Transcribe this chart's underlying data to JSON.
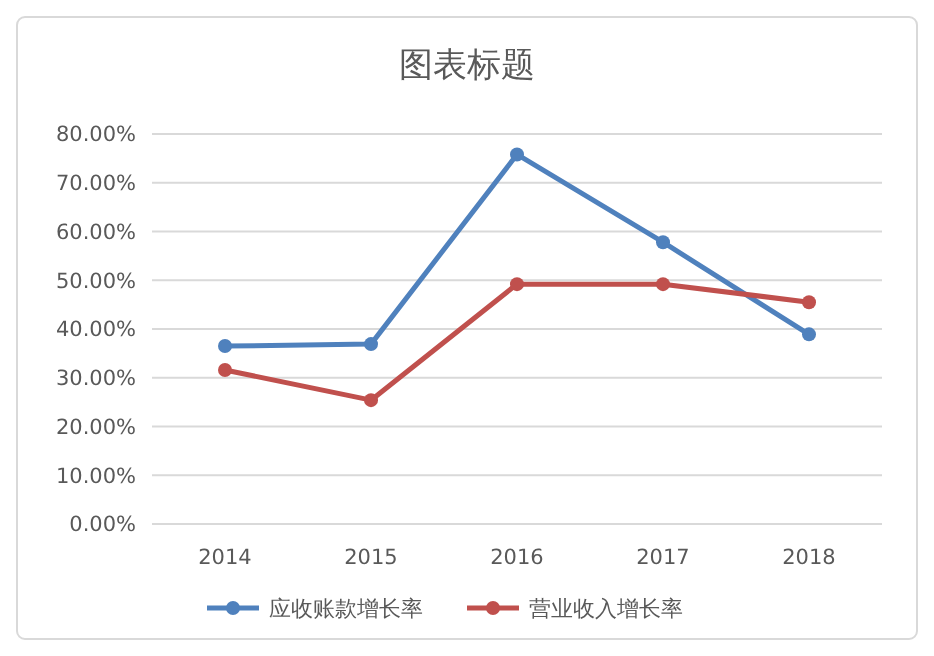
{
  "chart_data": {
    "type": "line",
    "title": "图表标题",
    "categories": [
      "2014",
      "2015",
      "2016",
      "2017",
      "2018"
    ],
    "series": [
      {
        "name": "应收账款增长率",
        "color": "#4f81bd",
        "values": [
          36.5,
          36.9,
          75.8,
          57.8,
          38.9
        ]
      },
      {
        "name": "营业收入增长率",
        "color": "#c0504d",
        "values": [
          31.6,
          25.4,
          49.2,
          49.2,
          45.5
        ]
      }
    ],
    "ylim": [
      0,
      80
    ],
    "yticks": [
      {
        "value": 0,
        "label": "0.00%"
      },
      {
        "value": 10,
        "label": "10.00%"
      },
      {
        "value": 20,
        "label": "20.00%"
      },
      {
        "value": 30,
        "label": "30.00%"
      },
      {
        "value": 40,
        "label": "40.00%"
      },
      {
        "value": 50,
        "label": "50.00%"
      },
      {
        "value": 60,
        "label": "60.00%"
      },
      {
        "value": 70,
        "label": "70.00%"
      },
      {
        "value": 80,
        "label": "80.00%"
      }
    ],
    "grid": "y",
    "legend": "bottom",
    "marker": "circle",
    "line_style": "solid"
  }
}
